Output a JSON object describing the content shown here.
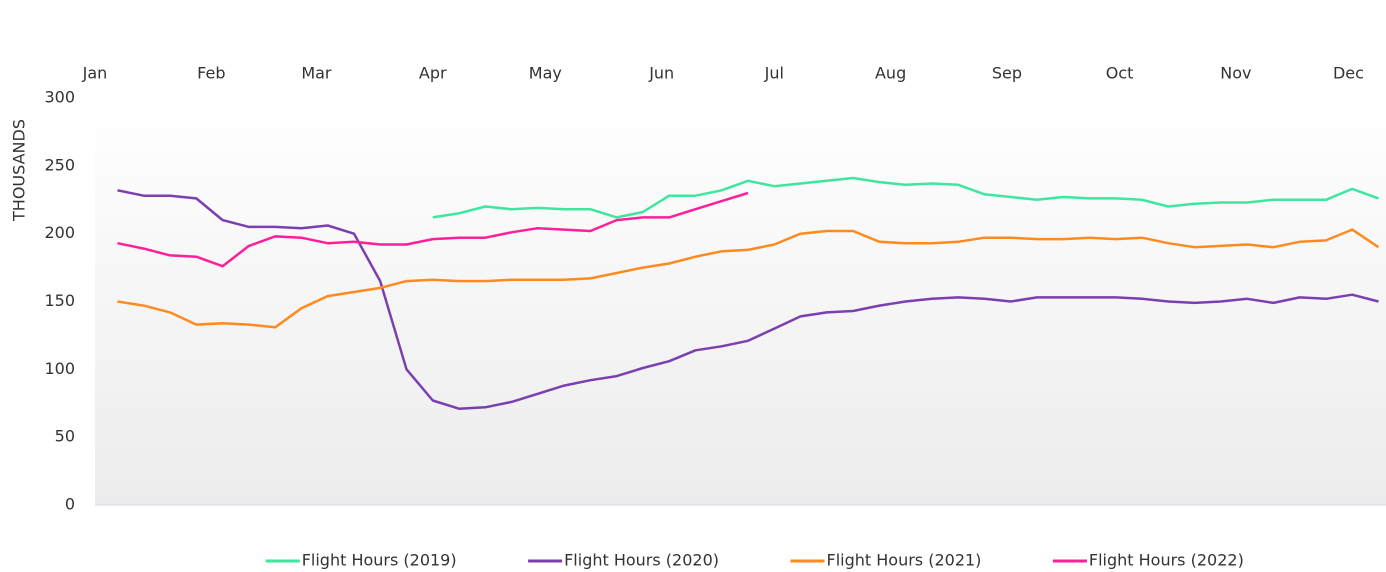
{
  "chart_data": {
    "type": "line",
    "y_label": "THOUSANDS",
    "x": [
      6,
      13,
      20,
      27,
      34,
      41,
      48,
      55,
      62,
      69,
      76,
      83,
      90,
      97,
      104,
      111,
      118,
      125,
      132,
      139,
      146,
      153,
      160,
      167,
      174,
      181,
      188,
      195,
      202,
      209,
      216,
      223,
      230,
      237,
      244,
      251,
      258,
      265,
      272,
      279,
      286,
      293,
      300,
      307,
      314,
      321,
      328,
      335,
      342
    ],
    "xlim": [
      0,
      344
    ],
    "xticks": [
      {
        "value": 0,
        "label": "Jan"
      },
      {
        "value": 31,
        "label": "Feb"
      },
      {
        "value": 59,
        "label": "Mar"
      },
      {
        "value": 90,
        "label": "Apr"
      },
      {
        "value": 120,
        "label": "May"
      },
      {
        "value": 151,
        "label": "Jun"
      },
      {
        "value": 181,
        "label": "Jul"
      },
      {
        "value": 212,
        "label": "Aug"
      },
      {
        "value": 243,
        "label": "Sep"
      },
      {
        "value": 273,
        "label": "Oct"
      },
      {
        "value": 304,
        "label": "Nov"
      },
      {
        "value": 334,
        "label": "Dec"
      }
    ],
    "ylim": [
      0,
      300
    ],
    "yticks": [
      0,
      50,
      100,
      150,
      200,
      250,
      300
    ],
    "grid": false,
    "legend": "bottom",
    "series": [
      {
        "name": "Flight Hours (2019)",
        "color": "#3ee6a0",
        "values": [
          null,
          null,
          null,
          null,
          null,
          null,
          null,
          null,
          null,
          null,
          null,
          null,
          212,
          215,
          220,
          218,
          219,
          218,
          218,
          212,
          216,
          228,
          228,
          232,
          239,
          235,
          237,
          239,
          241,
          238,
          236,
          237,
          236,
          229,
          227,
          225,
          227,
          226,
          226,
          225,
          220,
          222,
          223,
          223,
          225,
          225,
          225,
          233,
          226
        ]
      },
      {
        "name": "Flight Hours (2020)",
        "color": "#7b3fb0",
        "values": [
          232,
          228,
          228,
          226,
          210,
          205,
          205,
          204,
          206,
          200,
          165,
          100,
          77,
          71,
          72,
          76,
          82,
          88,
          92,
          95,
          101,
          106,
          114,
          117,
          121,
          130,
          139,
          142,
          143,
          147,
          150,
          152,
          153,
          152,
          150,
          153,
          153,
          153,
          153,
          152,
          150,
          149,
          150,
          152,
          149,
          153,
          152,
          155,
          150
        ]
      },
      {
        "name": "Flight Hours (2021)",
        "color": "#ff8a1f",
        "values": [
          150,
          147,
          142,
          133,
          134,
          133,
          131,
          145,
          154,
          157,
          160,
          165,
          166,
          165,
          165,
          166,
          166,
          166,
          167,
          171,
          175,
          178,
          183,
          187,
          188,
          192,
          200,
          202,
          202,
          194,
          193,
          193,
          194,
          197,
          197,
          196,
          196,
          197,
          196,
          197,
          193,
          190,
          191,
          192,
          190,
          194,
          195,
          203,
          190
        ]
      },
      {
        "name": "Flight Hours (2022)",
        "color": "#ff1f9a",
        "values": [
          193,
          189,
          184,
          183,
          176,
          191,
          198,
          197,
          193,
          194,
          192,
          192,
          196,
          197,
          197,
          201,
          204,
          203,
          202,
          210,
          212,
          212,
          218,
          224,
          230,
          null,
          null,
          null,
          null,
          null,
          null,
          null,
          null,
          null,
          null,
          null,
          null,
          null,
          null,
          null,
          null,
          null,
          null,
          null,
          null,
          null,
          null,
          null,
          null
        ]
      }
    ]
  }
}
